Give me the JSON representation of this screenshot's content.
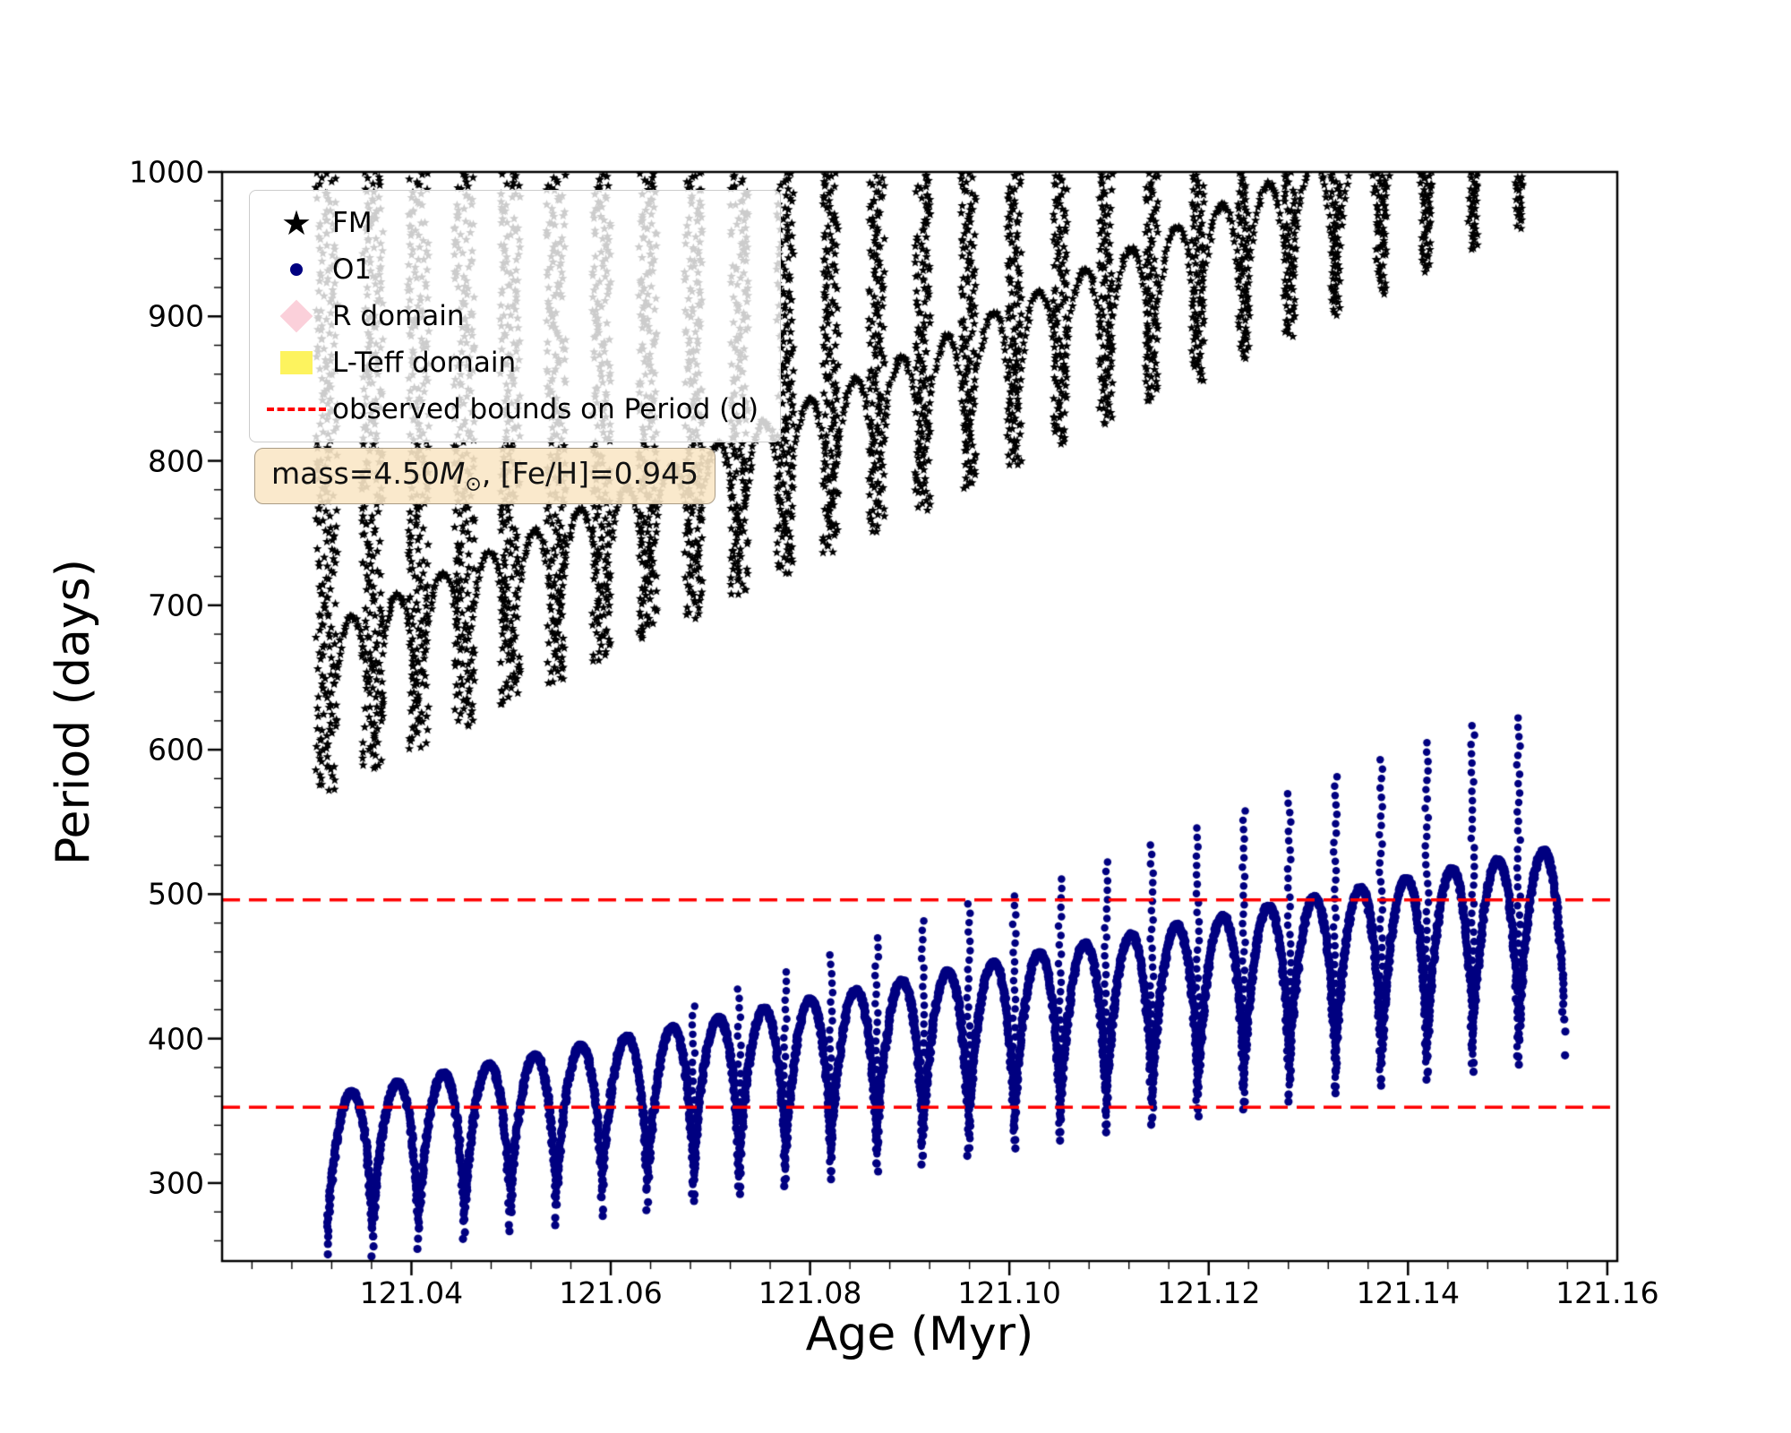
{
  "figure": {
    "background": "#ffffff"
  },
  "chart_data": {
    "type": "scatter",
    "title": "",
    "xlabel": "Age (Myr)",
    "ylabel": "Period (days)",
    "xlim": [
      121.021,
      121.161
    ],
    "ylim": [
      246,
      1000
    ],
    "xticks": [
      121.04,
      121.06,
      121.08,
      121.1,
      121.12,
      121.14,
      121.16
    ],
    "xtick_labels": [
      "121.04",
      "121.06",
      "121.08",
      "121.10",
      "121.12",
      "121.14",
      "121.16"
    ],
    "yticks": [
      300,
      400,
      500,
      600,
      700,
      800,
      900,
      1000
    ],
    "ytick_labels": [
      "300",
      "400",
      "500",
      "600",
      "700",
      "800",
      "900",
      "1000"
    ],
    "minor_ticks": {
      "x_step": 0.004,
      "y_step": 20
    },
    "grid": false,
    "hlines": {
      "values": [
        352.5,
        496
      ],
      "color": "#ff0000",
      "style": "dashed",
      "label": "observed bounds on Period (d)"
    },
    "series": [
      {
        "name": "FM",
        "marker": "star",
        "color": "#000000",
        "marker_size": 5.4,
        "columns": {
          "x_start": 121.0315,
          "x_step": 0.0046,
          "count": 27,
          "y_top": 1000,
          "y_bottom_start": 572,
          "y_bottom_step": 15,
          "width_start": 0.0022,
          "width_end": 0.0009,
          "y_sample_step": 3.5
        },
        "arches": {
          "rise": 120,
          "sparse": 40,
          "t_pow": 1.15,
          "sin_pow": 0.5
        }
      },
      {
        "name": "O1",
        "marker": "circle",
        "color": "#000080",
        "marker_size": 4.6,
        "cycles": {
          "x_start": 121.0315,
          "x_step": 0.0046,
          "count": 27,
          "min_start": 250,
          "min_end": 388,
          "peak_start": 363,
          "peak_end": 530,
          "samples": 170,
          "t_pow": 1.15,
          "sin_pow": 0.55
        },
        "strands": {
          "first_cycle": 8,
          "extra_start": 12,
          "extra_step": 4.8,
          "y_step": 6.5
        }
      }
    ],
    "legend": {
      "position": "upper-left",
      "items": [
        {
          "label": "FM",
          "marker": "star",
          "color": "#000000"
        },
        {
          "label": "O1",
          "marker": "circle",
          "color": "#000080"
        },
        {
          "label": "R domain",
          "marker": "diamond",
          "color": "#fbd0da"
        },
        {
          "label": "L-Teff domain",
          "marker": "square",
          "color": "#fdf35e"
        },
        {
          "label": "observed bounds on Period (d)",
          "marker": "dashed-line",
          "color": "#ff0000"
        }
      ]
    },
    "annotation": {
      "prefix": "mass=4.50",
      "mass_symbol": "M",
      "subscript": "⊙",
      "suffix": ", [Fe/H]=0.945",
      "bg": "#f9e7c6",
      "border": "#aa9c86"
    },
    "axes": {
      "frame_color": "#000000",
      "tick_color": "#000000"
    }
  }
}
